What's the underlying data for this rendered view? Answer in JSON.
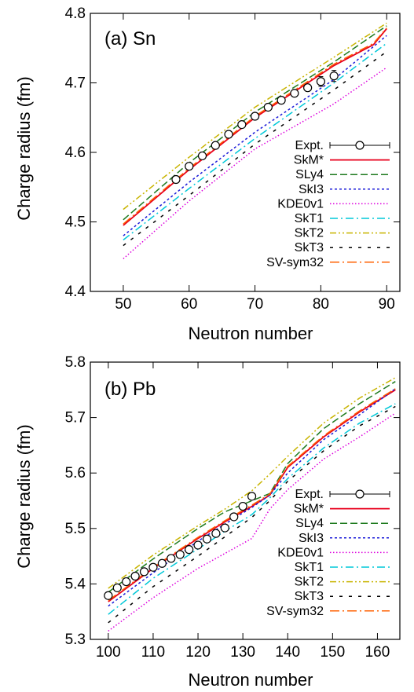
{
  "chart_data": [
    {
      "type": "line",
      "panel_label": "(a) Sn",
      "xlabel": "Neutron number",
      "ylabel": "Charge radius (fm)",
      "xlim": [
        45,
        92
      ],
      "ylim": [
        4.4,
        4.8
      ],
      "xticks": [
        "50",
        "60",
        "70",
        "80",
        "90"
      ],
      "yticks": [
        "4.4",
        "4.5",
        "4.6",
        "4.7",
        "4.8"
      ],
      "grid": false,
      "legend": "bottom-right",
      "expt": {
        "name": "Expt.",
        "x": [
          58,
          60,
          62,
          64,
          66,
          68,
          70,
          72,
          74,
          76,
          78,
          80,
          82
        ],
        "y": [
          4.561,
          4.58,
          4.595,
          4.61,
          4.626,
          4.64,
          4.652,
          4.665,
          4.675,
          4.685,
          4.693,
          4.702,
          4.71
        ],
        "err": [
          0.003,
          0.003,
          0.003,
          0.003,
          0.003,
          0.003,
          0.003,
          0.003,
          0.003,
          0.003,
          0.005,
          0.007,
          0.008
        ]
      },
      "series": [
        {
          "name": "SkM*",
          "color": "#e8001c",
          "style": "solid",
          "x": [
            50,
            60,
            70,
            82,
            88,
            90
          ],
          "y": [
            4.495,
            4.575,
            4.65,
            4.725,
            4.755,
            4.778
          ]
        },
        {
          "name": "SLy4",
          "color": "#1e7a1e",
          "style": "dashed",
          "x": [
            50,
            60,
            70,
            82,
            90
          ],
          "y": [
            4.503,
            4.585,
            4.658,
            4.73,
            4.782
          ]
        },
        {
          "name": "SkI3",
          "color": "#1a1ad8",
          "style": "dotted",
          "x": [
            50,
            60,
            70,
            82,
            90
          ],
          "y": [
            4.48,
            4.557,
            4.629,
            4.705,
            4.768
          ]
        },
        {
          "name": "KDE0v1",
          "color": "#dd00dd",
          "style": "finedot",
          "x": [
            50,
            60,
            70,
            82,
            90
          ],
          "y": [
            4.447,
            4.53,
            4.605,
            4.67,
            4.722
          ]
        },
        {
          "name": "SkT1",
          "color": "#00c8d8",
          "style": "dashdot",
          "x": [
            50,
            60,
            70,
            82,
            90
          ],
          "y": [
            4.474,
            4.548,
            4.62,
            4.7,
            4.757
          ]
        },
        {
          "name": "SkT2",
          "color": "#c8b400",
          "style": "dashdotdot",
          "x": [
            50,
            60,
            70,
            82,
            90
          ],
          "y": [
            4.518,
            4.593,
            4.665,
            4.737,
            4.786
          ]
        },
        {
          "name": "SkT3",
          "color": "#000000",
          "style": "sparsedash",
          "x": [
            50,
            60,
            70,
            82,
            90
          ],
          "y": [
            4.466,
            4.538,
            4.612,
            4.69,
            4.745
          ]
        },
        {
          "name": "SV-sym32",
          "color": "#ff6000",
          "style": "dashdotlong",
          "x": [
            50,
            60,
            70,
            82,
            88,
            90
          ],
          "y": [
            4.497,
            4.577,
            4.652,
            4.727,
            4.757,
            4.779
          ]
        }
      ]
    },
    {
      "type": "line",
      "panel_label": "(b) Pb",
      "xlabel": "Neutron number",
      "ylabel": "Charge radius (fm)",
      "xlim": [
        96,
        165
      ],
      "ylim": [
        5.3,
        5.8
      ],
      "xticks": [
        "100",
        "110",
        "120",
        "130",
        "140",
        "150",
        "160"
      ],
      "yticks": [
        "5.3",
        "5.4",
        "5.5",
        "5.6",
        "5.7",
        "5.8"
      ],
      "grid": false,
      "legend": "bottom-right",
      "expt": {
        "name": "Expt.",
        "x": [
          100,
          102,
          104,
          106,
          108,
          110,
          112,
          114,
          116,
          118,
          120,
          122,
          124,
          126,
          128,
          130,
          132
        ],
        "y": [
          5.379,
          5.393,
          5.404,
          5.414,
          5.422,
          5.43,
          5.437,
          5.446,
          5.453,
          5.462,
          5.47,
          5.481,
          5.491,
          5.501,
          5.521,
          5.54,
          5.558
        ],
        "err": [
          0.004,
          0.004,
          0.004,
          0.003,
          0.003,
          0.003,
          0.003,
          0.003,
          0.003,
          0.003,
          0.003,
          0.003,
          0.003,
          0.003,
          0.003,
          0.003,
          0.003
        ]
      },
      "series": [
        {
          "name": "SkM*",
          "color": "#e8001c",
          "style": "solid",
          "x": [
            100,
            110,
            120,
            126,
            132,
            136,
            140,
            148,
            156,
            164
          ],
          "y": [
            5.368,
            5.428,
            5.482,
            5.512,
            5.54,
            5.56,
            5.61,
            5.665,
            5.71,
            5.75
          ]
        },
        {
          "name": "SLy4",
          "color": "#1e7a1e",
          "style": "dashed",
          "x": [
            100,
            110,
            120,
            126,
            132,
            136,
            140,
            148,
            156,
            164
          ],
          "y": [
            5.385,
            5.445,
            5.5,
            5.53,
            5.55,
            5.563,
            5.617,
            5.68,
            5.725,
            5.765
          ]
        },
        {
          "name": "SkI3",
          "color": "#1a1ad8",
          "style": "dotted",
          "x": [
            100,
            110,
            120,
            126,
            132,
            136,
            140,
            148,
            156,
            164
          ],
          "y": [
            5.36,
            5.42,
            5.477,
            5.508,
            5.538,
            5.56,
            5.6,
            5.66,
            5.705,
            5.752
          ]
        },
        {
          "name": "KDE0v1",
          "color": "#dd00dd",
          "style": "finedot",
          "x": [
            100,
            110,
            120,
            126,
            132,
            136,
            140,
            148,
            156,
            164
          ],
          "y": [
            5.315,
            5.375,
            5.428,
            5.455,
            5.482,
            5.535,
            5.57,
            5.625,
            5.665,
            5.708
          ]
        },
        {
          "name": "SkT1",
          "color": "#00c8d8",
          "style": "dashdot",
          "x": [
            100,
            110,
            120,
            126,
            132,
            136,
            140,
            148,
            156,
            164
          ],
          "y": [
            5.345,
            5.41,
            5.463,
            5.495,
            5.525,
            5.555,
            5.59,
            5.645,
            5.69,
            5.725
          ]
        },
        {
          "name": "SkT2",
          "color": "#c8b400",
          "style": "dashdotdot",
          "x": [
            100,
            110,
            120,
            126,
            132,
            136,
            140,
            148,
            156,
            164
          ],
          "y": [
            5.392,
            5.452,
            5.505,
            5.535,
            5.568,
            5.598,
            5.63,
            5.69,
            5.735,
            5.772
          ]
        },
        {
          "name": "SkT3",
          "color": "#000000",
          "style": "sparsedash",
          "x": [
            100,
            110,
            120,
            126,
            132,
            136,
            140,
            148,
            156,
            164
          ],
          "y": [
            5.33,
            5.395,
            5.45,
            5.485,
            5.52,
            5.55,
            5.585,
            5.64,
            5.685,
            5.72
          ]
        },
        {
          "name": "SV-sym32",
          "color": "#ff6000",
          "style": "dashdotlong",
          "x": [
            100,
            110,
            120,
            126,
            132,
            136,
            140,
            148,
            156,
            164
          ],
          "y": [
            5.37,
            5.43,
            5.484,
            5.514,
            5.542,
            5.562,
            5.612,
            5.667,
            5.712,
            5.752
          ]
        }
      ]
    }
  ]
}
